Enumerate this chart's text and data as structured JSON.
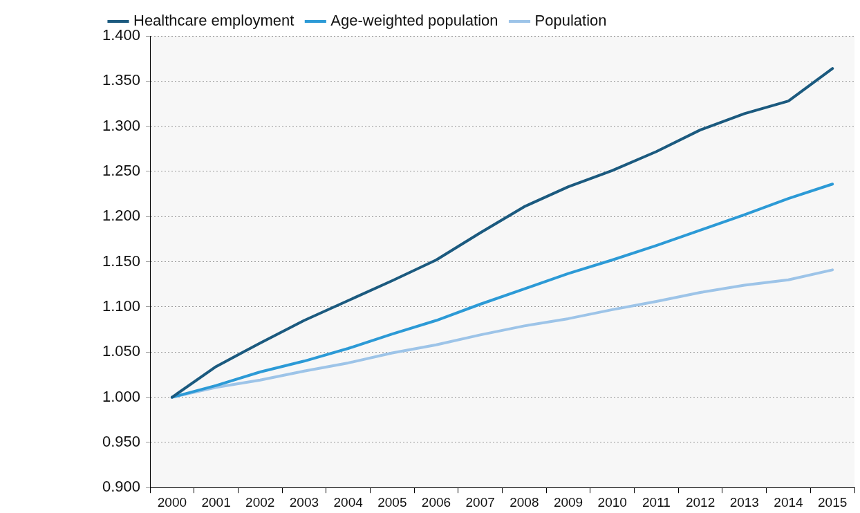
{
  "chart_data": {
    "type": "line",
    "categories": [
      "2000",
      "2001",
      "2002",
      "2003",
      "2004",
      "2005",
      "2006",
      "2007",
      "2008",
      "2009",
      "2010",
      "2011",
      "2012",
      "2013",
      "2014",
      "2015"
    ],
    "series": [
      {
        "name": "Healthcare employment",
        "color": "#1b5a7f",
        "values": [
          1.0,
          1.034,
          1.06,
          1.085,
          1.107,
          1.129,
          1.152,
          1.182,
          1.211,
          1.233,
          1.251,
          1.272,
          1.296,
          1.314,
          1.328,
          1.364
        ]
      },
      {
        "name": "Age-weighted population",
        "color": "#2c9ad6",
        "values": [
          1.0,
          1.013,
          1.028,
          1.04,
          1.054,
          1.07,
          1.085,
          1.103,
          1.12,
          1.137,
          1.152,
          1.168,
          1.185,
          1.202,
          1.22,
          1.236
        ]
      },
      {
        "name": "Population",
        "color": "#9dc4e8",
        "values": [
          1.0,
          1.011,
          1.019,
          1.029,
          1.038,
          1.049,
          1.058,
          1.069,
          1.079,
          1.087,
          1.097,
          1.106,
          1.116,
          1.124,
          1.13,
          1.141
        ]
      }
    ],
    "ylim": [
      0.9,
      1.4
    ],
    "yticks": [
      {
        "value": 0.9,
        "label": "0.900"
      },
      {
        "value": 0.95,
        "label": "0.950"
      },
      {
        "value": 1.0,
        "label": "1.000"
      },
      {
        "value": 1.05,
        "label": "1.050"
      },
      {
        "value": 1.1,
        "label": "1.100"
      },
      {
        "value": 1.15,
        "label": "1.150"
      },
      {
        "value": 1.2,
        "label": "1.200"
      },
      {
        "value": 1.25,
        "label": "1.250"
      },
      {
        "value": 1.3,
        "label": "1.300"
      },
      {
        "value": 1.35,
        "label": "1.350"
      },
      {
        "value": 1.4,
        "label": "1.400"
      }
    ],
    "grid": "y",
    "legend": "top left",
    "marker": "none",
    "line_style": "solid"
  }
}
